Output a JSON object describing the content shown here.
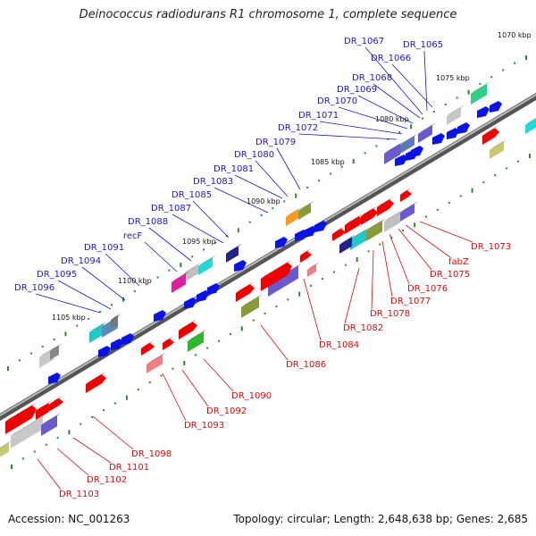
{
  "title": "Deinococcus radiodurans R1 chromosome 1, complete sequence",
  "accession": "Accession: NC_001263",
  "topology": "Topology: circular; Length: 2,648,638 bp; Genes: 2,685",
  "colors": {
    "upper_label": "#1a1ab8",
    "lower_label": "#cc1010"
  },
  "kbp_labels": [
    "1070 kbp",
    "1075 kbp",
    "1080 kbp",
    "1085 kbp",
    "1090 kbp",
    "1095 kbp",
    "1100 kbp",
    "1105 kbp"
  ],
  "upper_genes": [
    "DR_1067",
    "DR_1065",
    "DR_1066",
    "DR_1068",
    "DR_1069",
    "DR_1070",
    "DR_1071",
    "DR_1072",
    "DR_1079",
    "DR_1080",
    "DR_1081",
    "DR_1083",
    "DR_1085",
    "DR_1087",
    "DR_1088",
    "recF",
    "DR_1091",
    "DR_1094",
    "DR_1095",
    "DR_1096"
  ],
  "lower_genes": [
    "DR_1073",
    "fabZ",
    "DR_1075",
    "DR_1076",
    "DR_1077",
    "DR_1078",
    "DR_1082",
    "DR_1084",
    "DR_1086",
    "DR_1090",
    "DR_1092",
    "DR_1093",
    "DR_1098",
    "DR_1101",
    "DR_1102",
    "DR_1103"
  ]
}
